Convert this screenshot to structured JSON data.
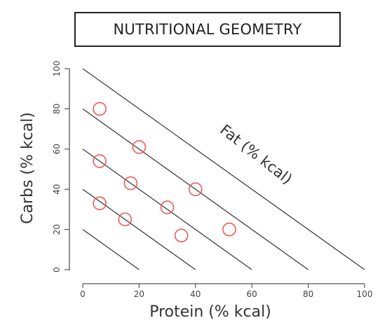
{
  "chart_data": {
    "type": "scatter",
    "title": "NUTRITIONAL GEOMETRY",
    "xlabel": "Protein (% kcal)",
    "ylabel": "Carbs (% kcal)",
    "annotation": "Fat (% kcal)",
    "xlim": [
      0,
      100
    ],
    "ylim": [
      0,
      100
    ],
    "xticks": [
      0,
      20,
      40,
      60,
      80,
      100
    ],
    "yticks": [
      0,
      20,
      40,
      60,
      80,
      100
    ],
    "isolines": [
      20,
      40,
      60,
      80,
      100
    ],
    "grid": false,
    "marker_color": "#f05a5a",
    "line_color": "#333333",
    "points": [
      {
        "x": 6,
        "y": 80
      },
      {
        "x": 20,
        "y": 61
      },
      {
        "x": 6,
        "y": 54
      },
      {
        "x": 17,
        "y": 43
      },
      {
        "x": 40,
        "y": 40
      },
      {
        "x": 6,
        "y": 33
      },
      {
        "x": 30,
        "y": 31
      },
      {
        "x": 15,
        "y": 25
      },
      {
        "x": 52,
        "y": 20
      },
      {
        "x": 35,
        "y": 17
      }
    ]
  }
}
